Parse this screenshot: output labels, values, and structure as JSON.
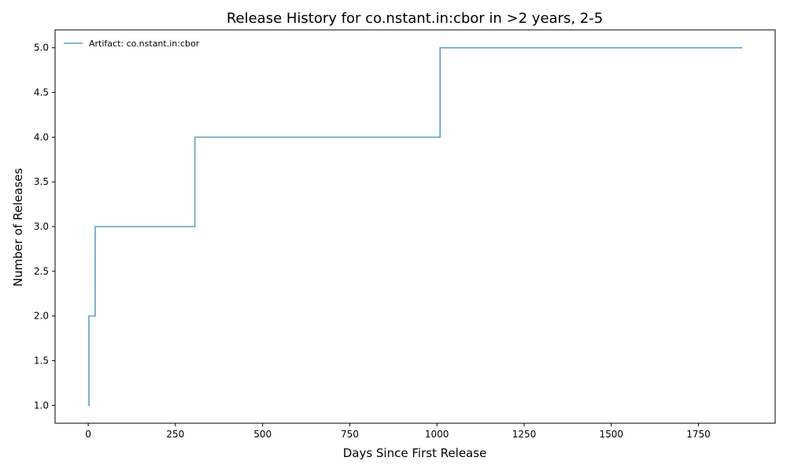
{
  "chart_data": {
    "type": "line",
    "step": "post",
    "title": "Release History for co.nstant.in:cbor in >2 years, 2-5",
    "xlabel": "Days Since First Release",
    "ylabel": "Number of Releases",
    "xlim": [
      -95,
      1970
    ],
    "ylim": [
      0.8,
      5.2
    ],
    "xticks": [
      0,
      250,
      500,
      750,
      1000,
      1250,
      1500,
      1750
    ],
    "xtick_labels": [
      "0",
      "250",
      "500",
      "750",
      "1000",
      "1250",
      "1500",
      "1750"
    ],
    "yticks": [
      1.0,
      1.5,
      2.0,
      2.5,
      3.0,
      3.5,
      4.0,
      4.5,
      5.0
    ],
    "ytick_labels": [
      "1.0",
      "1.5",
      "2.0",
      "2.5",
      "3.0",
      "3.5",
      "4.0",
      "4.5",
      "5.0"
    ],
    "grid": false,
    "legend_position": "top-left",
    "series": [
      {
        "name": "Artifact: co.nstant.in:cbor",
        "color": "#5b9fd1",
        "x": [
          0,
          2,
          20,
          306,
          1009,
          1876
        ],
        "y": [
          1,
          2,
          3,
          4,
          5,
          5
        ]
      }
    ]
  }
}
